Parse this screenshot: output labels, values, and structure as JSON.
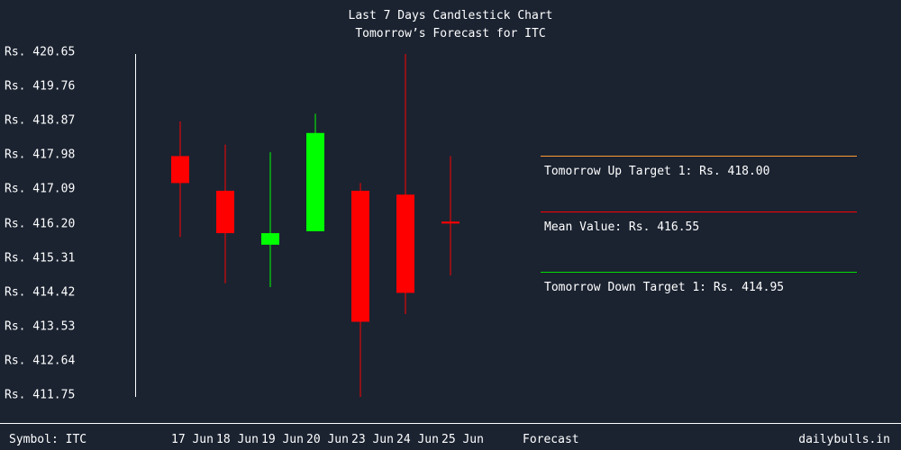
{
  "chart_data": {
    "type": "candlestick",
    "title": "Last 7 Days Candlestick Chart",
    "subtitle": "Tomorrow’s Forecast for ITC",
    "y_tick_labels": [
      "Rs. 420.65",
      "Rs. 419.76",
      "Rs. 418.87",
      "Rs. 417.98",
      "Rs. 417.09",
      "Rs. 416.20",
      "Rs. 415.31",
      "Rs. 414.42",
      "Rs. 413.53",
      "Rs. 412.64",
      "Rs. 411.75"
    ],
    "y_ticks": [
      420.65,
      419.76,
      418.87,
      417.98,
      417.09,
      416.2,
      415.31,
      414.42,
      413.53,
      412.64,
      411.75
    ],
    "ylim": [
      411.75,
      420.65
    ],
    "categories": [
      "17 Jun",
      "18 Jun",
      "19 Jun",
      "20 Jun",
      "23 Jun",
      "24 Jun",
      "25 Jun"
    ],
    "candles": [
      {
        "date": "17 Jun",
        "open": 417.3,
        "high": 418.9,
        "low": 415.9,
        "close": 418.0,
        "color": "#ff0000"
      },
      {
        "date": "18 Jun",
        "open": 417.1,
        "high": 418.3,
        "low": 414.7,
        "close": 416.0,
        "color": "#ff0000"
      },
      {
        "date": "19 Jun",
        "open": 415.7,
        "high": 418.1,
        "low": 414.6,
        "close": 416.0,
        "color": "#00ff00"
      },
      {
        "date": "20 Jun",
        "open": 416.05,
        "high": 419.1,
        "low": 416.05,
        "close": 418.6,
        "color": "#00ff00"
      },
      {
        "date": "23 Jun",
        "open": 417.1,
        "high": 417.3,
        "low": 411.75,
        "close": 413.7,
        "color": "#ff0000"
      },
      {
        "date": "24 Jun",
        "open": 417.0,
        "high": 420.65,
        "low": 413.9,
        "close": 414.45,
        "color": "#ff0000"
      },
      {
        "date": "25 Jun",
        "open": 416.3,
        "high": 418.0,
        "low": 414.9,
        "close": 416.25,
        "color": "#ff0000"
      }
    ],
    "forecast": {
      "label": "Forecast",
      "targets": [
        {
          "key": "up",
          "text": "Tomorrow Up Target 1: Rs. 418.00",
          "value": 418.0,
          "color": "#ff9933"
        },
        {
          "key": "mean",
          "text": "Mean Value: Rs. 416.55",
          "value": 416.55,
          "color": "#ff0000"
        },
        {
          "key": "down",
          "text": "Tomorrow Down Target 1: Rs. 414.95",
          "value": 414.95,
          "color": "#00dd00"
        }
      ]
    }
  },
  "footer": {
    "symbol": "Symbol: ITC",
    "brand": "dailybulls.in"
  },
  "colors": {
    "background": "#1b2331",
    "text": "#ffffff",
    "down": "#ff0000",
    "up": "#00ff00"
  }
}
